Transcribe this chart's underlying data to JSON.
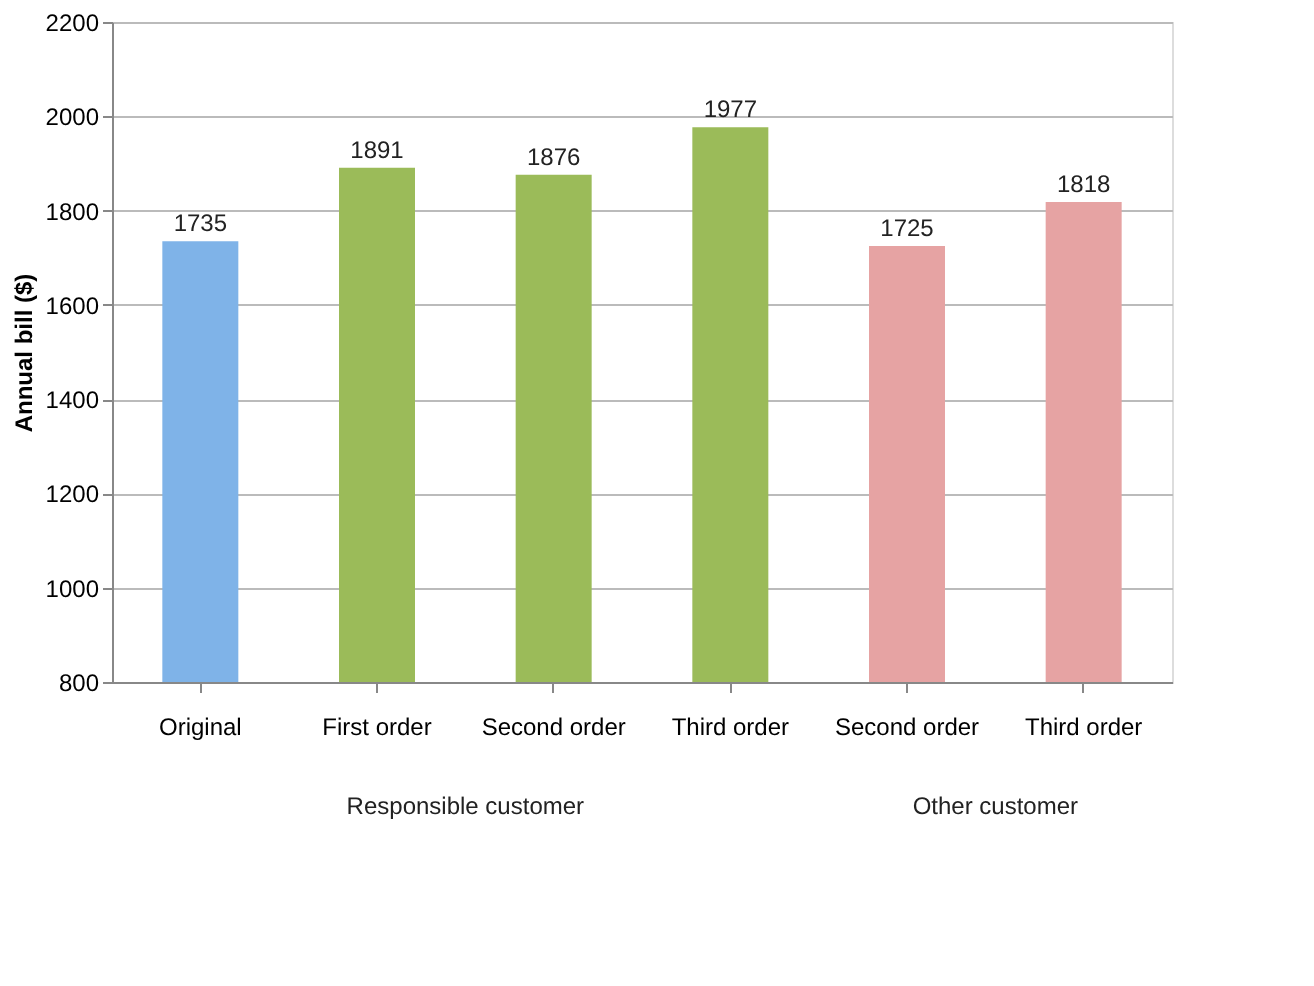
{
  "chart_data": {
    "type": "bar",
    "categories": [
      "Original",
      "First order",
      "Second order",
      "Third order",
      "Second order",
      "Third order"
    ],
    "values": [
      1735,
      1891,
      1876,
      1977,
      1725,
      1818
    ],
    "colors": [
      "#7fb3e8",
      "#9bbb59",
      "#9bbb59",
      "#9bbb59",
      "#e6a3a3",
      "#e6a3a3"
    ],
    "ylabel": "Annual bill ($)",
    "ylim": [
      800,
      2200
    ],
    "yticks": [
      800,
      1000,
      1200,
      1400,
      1600,
      1800,
      2000,
      2200
    ],
    "grid": "y",
    "data_labels": true,
    "annotations": [
      "Responsible customer",
      "Other customer"
    ]
  }
}
